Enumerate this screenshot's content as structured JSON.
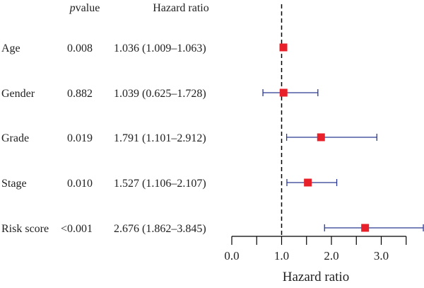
{
  "chart_data": {
    "type": "forest",
    "columns": {
      "pvalue_prefix": "p",
      "pvalue_suffix": "value",
      "hazard_ratio": "Hazard ratio"
    },
    "rows": [
      {
        "label": "Age",
        "pvalue": "0.008",
        "hr_text": "1.036 (1.009–1.063)",
        "hr": 1.036,
        "lower": 1.009,
        "upper": 1.063
      },
      {
        "label": "Gender",
        "pvalue": "0.882",
        "hr_text": "1.039 (0.625–1.728)",
        "hr": 1.039,
        "lower": 0.625,
        "upper": 1.728
      },
      {
        "label": "Grade",
        "pvalue": "0.019",
        "hr_text": "1.791 (1.101–2.912)",
        "hr": 1.791,
        "lower": 1.101,
        "upper": 2.912
      },
      {
        "label": "Stage",
        "pvalue": "0.010",
        "hr_text": "1.527 (1.106–2.107)",
        "hr": 1.527,
        "lower": 1.106,
        "upper": 2.107
      },
      {
        "label": "Risk score",
        "pvalue": "<0.001",
        "hr_text": "2.676 (1.862–3.845)",
        "hr": 2.676,
        "lower": 1.862,
        "upper": 3.845
      }
    ],
    "xlabel": "Hazard ratio",
    "xlim": [
      0,
      3.845
    ],
    "x_ticks": [
      0,
      0.5,
      1,
      1.5,
      2,
      2.5,
      3,
      3.5
    ],
    "x_tick_labels": [
      {
        "value": 0,
        "label": "0.0"
      },
      {
        "value": 1,
        "label": "1.0"
      },
      {
        "value": 2,
        "label": "2.0"
      },
      {
        "value": 3,
        "label": "3.0"
      }
    ],
    "reference_line": 1,
    "colors": {
      "marker": "#e8202a",
      "ci_line": "#2b3990",
      "reference": "#000000",
      "axis": "#000000",
      "text": "#222222"
    }
  }
}
